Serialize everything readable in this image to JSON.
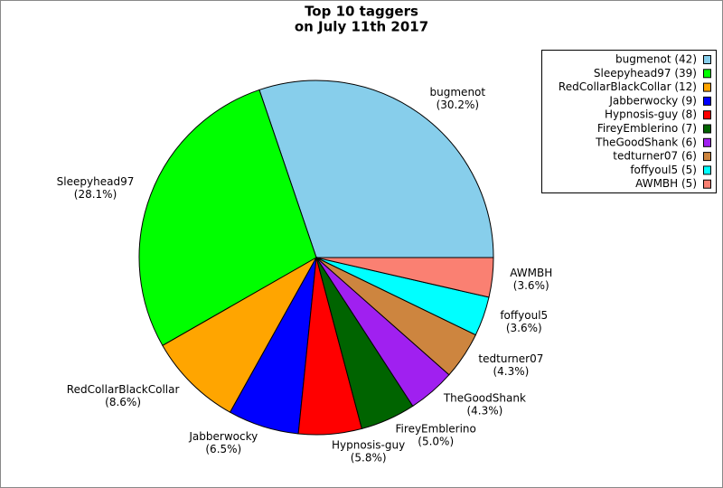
{
  "chart_data": {
    "type": "pie",
    "title": [
      "Top 10 taggers",
      "on July 11th 2017"
    ],
    "categories": [
      "bugmenot",
      "Sleepyhead97",
      "RedCollarBlackCollar",
      "Jabberwocky",
      "Hypnosis-guy",
      "FireyEmblerino",
      "TheGoodShank",
      "tedturner07",
      "foffyoul5",
      "AWMBH"
    ],
    "values": [
      42,
      39,
      12,
      9,
      8,
      7,
      6,
      6,
      5,
      5
    ],
    "percent_labels": [
      "(30.2%)",
      "(28.1%)",
      "(8.6%)",
      "(6.5%)",
      "(5.8%)",
      "(5.0%)",
      "(4.3%)",
      "(4.3%)",
      "(3.6%)",
      "(3.6%)"
    ],
    "legend_labels": [
      "bugmenot (42)",
      "Sleepyhead97 (39)",
      "RedCollarBlackCollar (12)",
      "Jabberwocky (9)",
      "Hypnosis-guy (8)",
      "FireyEmblerino (7)",
      "TheGoodShank (6)",
      "tedturner07 (6)",
      "foffyoul5 (5)",
      "AWMBH (5)"
    ],
    "colors": [
      "#87ceeb",
      "#00ff00",
      "#ffa500",
      "#0000ff",
      "#ff0000",
      "#006400",
      "#a020f0",
      "#cd853f",
      "#00ffff",
      "#fa8072"
    ],
    "legend_position": "upper right"
  }
}
